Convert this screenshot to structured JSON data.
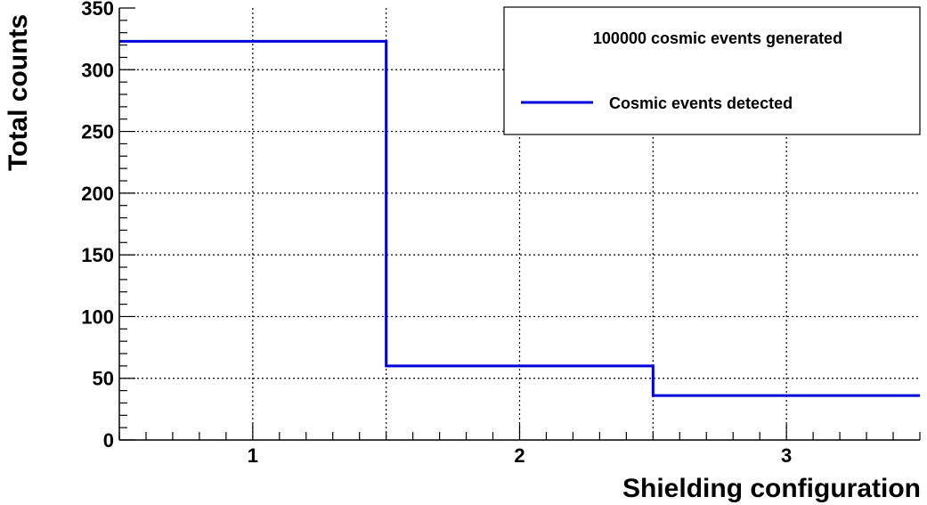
{
  "chart_data": {
    "type": "line",
    "step": true,
    "xlabel": "Shielding configuration",
    "ylabel": "Total counts",
    "xlim": [
      0.5,
      3.5
    ],
    "ylim": [
      0,
      350
    ],
    "x_ticks": [
      1,
      2,
      3
    ],
    "y_ticks": [
      0,
      50,
      100,
      150,
      200,
      250,
      300,
      350
    ],
    "grid": true,
    "series": [
      {
        "name": "Cosmic events detected",
        "color": "#0000dd",
        "bin_edges": [
          0.5,
          1.5,
          2.5,
          3.5
        ],
        "x": [
          1,
          2,
          3
        ],
        "values": [
          323,
          60,
          36
        ]
      }
    ],
    "legend": {
      "placement": "top-right",
      "header": "100000 cosmic events generated",
      "entries": [
        "Cosmic events detected"
      ]
    }
  }
}
